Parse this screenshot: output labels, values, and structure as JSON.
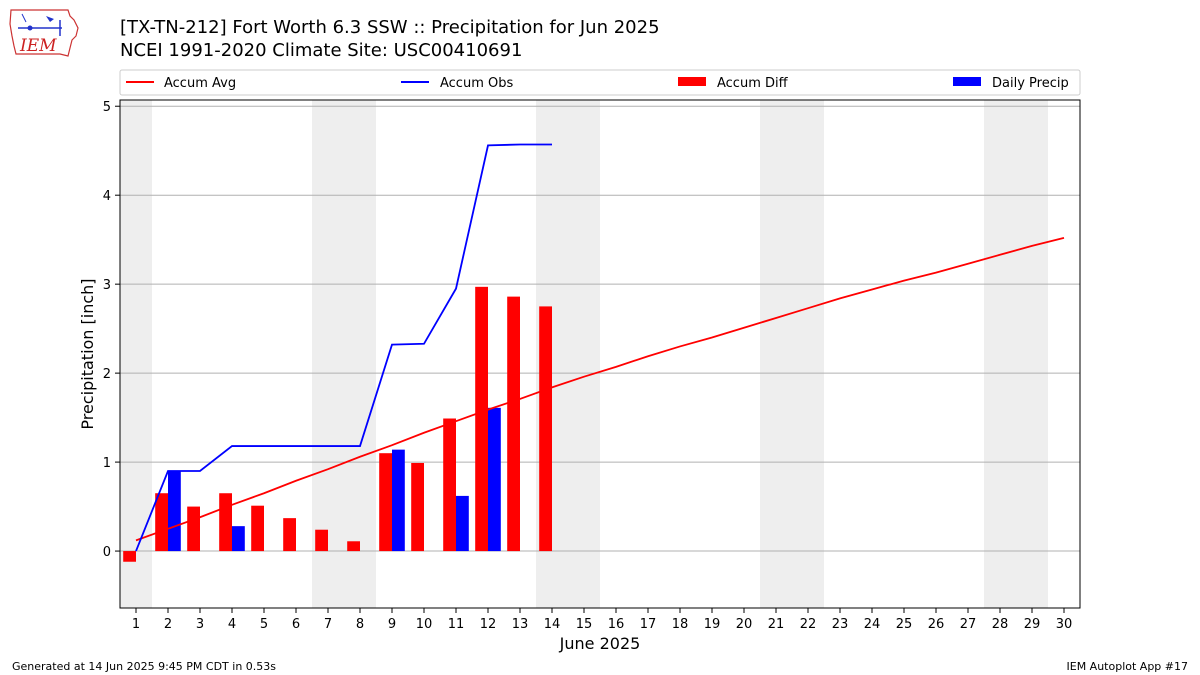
{
  "header": {
    "logo_text": "IEM",
    "title_line1": "[TX-TN-212] Fort Worth 6.3 SSW :: Precipitation for Jun 2025",
    "title_line2": "NCEI 1991-2020 Climate Site: USC00410691"
  },
  "footer": {
    "left": "Generated at 14 Jun 2025 9:45 PM CDT in 0.53s",
    "right": "IEM Autoplot App #17"
  },
  "colors": {
    "accum_avg": "#ff0000",
    "accum_obs": "#0000ff",
    "accum_diff": "#ff0000",
    "daily_precip": "#0000ff",
    "weekend_shade": "#eeeeee",
    "grid": "#b0b0b0"
  },
  "chart_data": {
    "type": "bar",
    "xlabel": "June 2025",
    "ylabel": "Precipitation [inch]",
    "xlim": [
      0.5,
      30.5
    ],
    "ylim": [
      -0.64,
      5.07
    ],
    "x_ticks": [
      1,
      2,
      3,
      4,
      5,
      6,
      7,
      8,
      9,
      10,
      11,
      12,
      13,
      14,
      15,
      16,
      17,
      18,
      19,
      20,
      21,
      22,
      23,
      24,
      25,
      26,
      27,
      28,
      29,
      30
    ],
    "y_ticks": [
      0,
      1,
      2,
      3,
      4,
      5
    ],
    "grid": "horizontal",
    "legend_placement": "top",
    "weekend_days": [
      1,
      7,
      8,
      14,
      15,
      21,
      22,
      28,
      29
    ],
    "legend": [
      "Accum Avg",
      "Accum Obs",
      "Accum Diff",
      "Daily Precip"
    ],
    "series": [
      {
        "name": "Accum Avg",
        "kind": "line",
        "x": [
          1,
          2,
          3,
          4,
          5,
          6,
          7,
          8,
          9,
          10,
          11,
          12,
          13,
          14,
          15,
          16,
          17,
          18,
          19,
          20,
          21,
          22,
          23,
          24,
          25,
          26,
          27,
          28,
          29,
          30
        ],
        "values": [
          0.12,
          0.25,
          0.38,
          0.52,
          0.65,
          0.79,
          0.92,
          1.06,
          1.19,
          1.33,
          1.46,
          1.59,
          1.71,
          1.84,
          1.96,
          2.07,
          2.19,
          2.3,
          2.4,
          2.51,
          2.62,
          2.73,
          2.84,
          2.94,
          3.04,
          3.13,
          3.23,
          3.33,
          3.43,
          3.52
        ]
      },
      {
        "name": "Accum Obs",
        "kind": "line",
        "x": [
          1,
          2,
          3,
          4,
          5,
          6,
          7,
          8,
          9,
          10,
          11,
          12,
          13,
          14
        ],
        "values": [
          0.0,
          0.9,
          0.9,
          1.18,
          1.18,
          1.18,
          1.18,
          1.18,
          2.32,
          2.33,
          2.95,
          4.56,
          4.57,
          4.57
        ]
      },
      {
        "name": "Accum Diff",
        "kind": "bar",
        "x": [
          1,
          2,
          3,
          4,
          5,
          6,
          7,
          8,
          9,
          10,
          11,
          12,
          13,
          14
        ],
        "values": [
          -0.12,
          0.65,
          0.5,
          0.65,
          0.51,
          0.37,
          0.24,
          0.11,
          1.1,
          0.99,
          1.49,
          2.97,
          2.86,
          2.75
        ]
      },
      {
        "name": "Daily Precip",
        "kind": "bar",
        "x": [
          2,
          4,
          9,
          11,
          12
        ],
        "values": [
          0.9,
          0.28,
          1.14,
          0.62,
          1.61
        ]
      }
    ]
  }
}
